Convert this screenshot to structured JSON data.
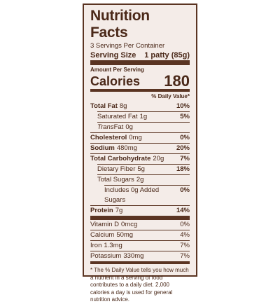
{
  "label": {
    "title": "Nutrition Facts",
    "servings": "3 Servings Per Container",
    "serving_size_label": "Serving Size",
    "serving_size_value": "1 patty (85g)",
    "amount_per_serving": "Amount Per Serving",
    "calories_label": "Calories",
    "calories_value": "180",
    "daily_value_header": "% Daily Value*",
    "nutrients": [
      {
        "name": "Total Fat",
        "amount": "8g",
        "dv": "10%"
      },
      {
        "name": "Saturated Fat",
        "amount": "1g",
        "dv": "5%"
      },
      {
        "name_italic": "Trans",
        "name": "Fat",
        "amount": "0g"
      },
      {
        "name": "Cholesterol",
        "amount": "0mg",
        "dv": "0%"
      },
      {
        "name": "Sodium",
        "amount": "480mg",
        "dv": "20%"
      },
      {
        "name": "Total Carbohydrate",
        "amount": "20g",
        "dv": "7%"
      },
      {
        "name": "Dietary Fiber",
        "amount": "5g",
        "dv": "18%"
      },
      {
        "name": "Total Sugars",
        "amount": "2g"
      },
      {
        "name": "Includes 0g Added Sugars",
        "dv": "0%"
      },
      {
        "name": "Protein",
        "amount": "7g",
        "dv": "14%"
      }
    ],
    "vitamins": [
      {
        "name": "Vitamin D",
        "amount": "0mcg",
        "dv": "0%"
      },
      {
        "name": "Calcium",
        "amount": "50mg",
        "dv": "4%"
      },
      {
        "name": "Iron",
        "amount": "1.3mg",
        "dv": "7%"
      },
      {
        "name": "Potassium",
        "amount": "330mg",
        "dv": "7%"
      }
    ],
    "footnote": "* The % Daily Value tells you how much a nutrient in a serving of food contributes to a daily diet. 2,000 calories a day is used for general nutrition advice."
  }
}
